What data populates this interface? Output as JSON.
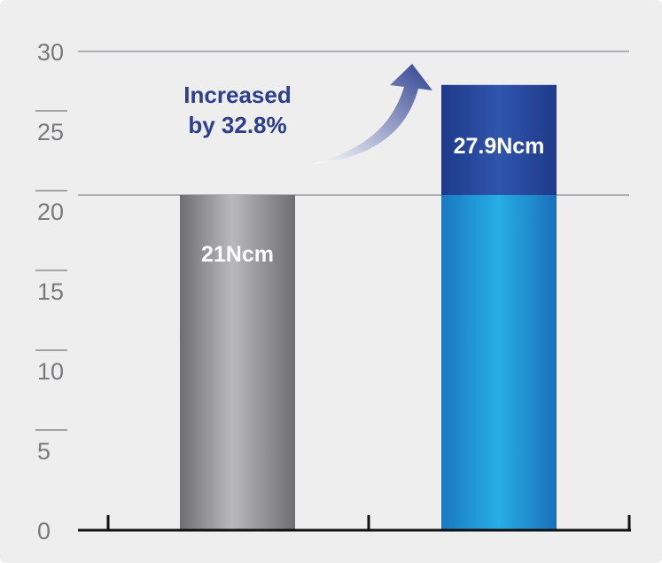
{
  "chart_data": {
    "type": "bar",
    "categories": [
      "",
      ""
    ],
    "values": [
      21,
      27.9
    ],
    "data_labels": [
      "21Ncm",
      "27.9Ncm"
    ],
    "yticks": [
      "0",
      "5",
      "10",
      "15",
      "20",
      "25",
      "30"
    ],
    "ylim": [
      0,
      30
    ],
    "annotation": [
      "Increased",
      "by 32.8%"
    ],
    "grid": true,
    "colors": {
      "bar_1": "#9a9a9c",
      "bar_2_base": "#1e9ad6",
      "bar_2_increase": "#24449a",
      "arrow": "#2c3f8f",
      "annotation_text": "#2c3f8f"
    }
  }
}
